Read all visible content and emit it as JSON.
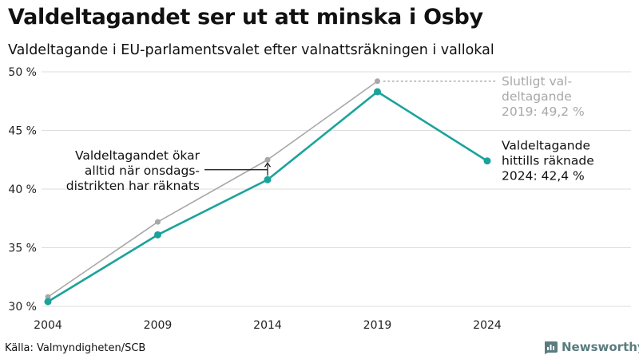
{
  "header": {
    "title": "Valdeltagandet ser ut att minska i Osby",
    "subtitle": "Valdeltagande i EU-parlamentsvalet efter valnattsräkningen i vallokal"
  },
  "footer": {
    "source": "Källa: Valmyndigheten/SCB",
    "brand": "Newsworthy"
  },
  "colors": {
    "accent": "#1aa39a",
    "final_line": "#a8a8a8",
    "grid": "#dddddd"
  },
  "chart_data": {
    "type": "line",
    "title": "Valdeltagandet ser ut att minska i Osby",
    "subtitle": "Valdeltagande i EU-parlamentsvalet efter valnattsräkningen i vallokal",
    "x": [
      2004,
      2009,
      2014,
      2019,
      2024
    ],
    "x_tick_labels": [
      "2004",
      "2009",
      "2014",
      "2019",
      "2024"
    ],
    "y_tick_labels": [
      "30 %",
      "35 %",
      "40 %",
      "45 %",
      "50 %"
    ],
    "y_ticks": [
      30,
      35,
      40,
      45,
      50
    ],
    "ylim": [
      30,
      50
    ],
    "grid": true,
    "legend": "none",
    "series": [
      {
        "key": "final",
        "x": [
          2004,
          2009,
          2014,
          2019
        ],
        "values": [
          30.8,
          37.2,
          42.5,
          49.2
        ],
        "color": "#a8a8a8"
      },
      {
        "key": "counted",
        "x": [
          2004,
          2009,
          2014,
          2019,
          2024
        ],
        "values": [
          30.4,
          36.1,
          40.8,
          48.3,
          42.4
        ],
        "color": "#1aa39a"
      }
    ],
    "annotations": {
      "final": [
        "Slutligt val-",
        "deltagande",
        "2019: 49,2 %"
      ],
      "counted": [
        "Valdeltagande",
        "hittills räknade",
        "2024: 42,4 %"
      ],
      "note": [
        "Valdeltagandet ökar",
        "alltid när onsdags-",
        "distrikten har räknats"
      ]
    }
  }
}
